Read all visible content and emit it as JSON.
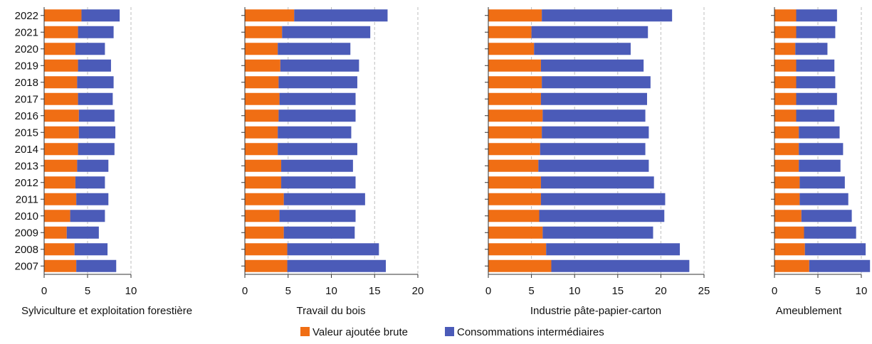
{
  "years": [
    "2022",
    "2021",
    "2020",
    "2019",
    "2018",
    "2017",
    "2016",
    "2015",
    "2014",
    "2013",
    "2012",
    "2011",
    "2010",
    "2009",
    "2008",
    "2007"
  ],
  "colors": {
    "vab": "#f06e14",
    "ci": "#4b5bb8",
    "grid": "#bdbdbd",
    "axis": "#333333"
  },
  "legend": {
    "vab_label": "Valeur ajoutée brute",
    "ci_label": "Consommations intermédiaires"
  },
  "chart_data": [
    {
      "type": "bar",
      "orientation": "horizontal",
      "stacked": true,
      "title": "Sylviculture et exploitation forestière",
      "xlim": [
        0,
        10
      ],
      "ticks": [
        0,
        5,
        10
      ],
      "tick_labels": [
        "0",
        "5",
        "10"
      ],
      "series": [
        {
          "name": "Valeur ajoutée brute",
          "values": [
            4.3,
            3.9,
            3.6,
            3.9,
            3.8,
            3.9,
            4.0,
            4.0,
            3.9,
            3.8,
            3.6,
            3.7,
            3.0,
            2.6,
            3.5,
            3.7
          ]
        },
        {
          "name": "Consommations intermédiaires",
          "values": [
            4.4,
            4.1,
            3.4,
            3.8,
            4.2,
            4.0,
            4.1,
            4.2,
            4.2,
            3.6,
            3.4,
            3.7,
            4.0,
            3.7,
            3.8,
            4.6
          ]
        }
      ]
    },
    {
      "type": "bar",
      "orientation": "horizontal",
      "stacked": true,
      "title": "Travail du bois",
      "xlim": [
        0,
        20
      ],
      "ticks": [
        0,
        5,
        10,
        15,
        20
      ],
      "tick_labels": [
        "0",
        "5",
        "10",
        "15",
        "20"
      ],
      "series": [
        {
          "name": "Valeur ajoutée brute",
          "values": [
            5.7,
            4.3,
            3.8,
            4.1,
            3.9,
            4.0,
            3.9,
            3.8,
            3.8,
            4.2,
            4.2,
            4.5,
            4.0,
            4.5,
            4.9,
            4.9
          ]
        },
        {
          "name": "Consommations intermédiaires",
          "values": [
            10.8,
            10.2,
            8.4,
            9.1,
            9.1,
            8.8,
            8.9,
            8.5,
            9.2,
            8.3,
            8.6,
            9.4,
            8.8,
            8.2,
            10.6,
            11.4
          ]
        }
      ]
    },
    {
      "type": "bar",
      "orientation": "horizontal",
      "stacked": true,
      "title": "Industrie pâte-papier-carton",
      "xlim": [
        0,
        25
      ],
      "ticks": [
        0,
        5,
        10,
        15,
        20,
        25
      ],
      "tick_labels": [
        "0",
        "5",
        "10",
        "15",
        "20",
        "25"
      ],
      "series": [
        {
          "name": "Valeur ajoutée brute",
          "values": [
            6.2,
            5.0,
            5.3,
            6.1,
            6.2,
            6.1,
            6.3,
            6.2,
            6.0,
            5.8,
            6.1,
            6.1,
            5.9,
            6.3,
            6.7,
            7.3
          ]
        },
        {
          "name": "Consommations intermédiaires",
          "values": [
            15.1,
            13.5,
            11.2,
            11.9,
            12.6,
            12.3,
            11.9,
            12.4,
            12.2,
            12.8,
            13.1,
            14.4,
            14.5,
            12.8,
            15.5,
            16.0
          ]
        }
      ]
    },
    {
      "type": "bar",
      "orientation": "horizontal",
      "stacked": true,
      "title": "Ameublement",
      "xlim": [
        0,
        11
      ],
      "ticks": [
        0,
        5,
        10
      ],
      "tick_labels": [
        "0",
        "5",
        "10"
      ],
      "series": [
        {
          "name": "Valeur ajoutée brute",
          "values": [
            2.5,
            2.5,
            2.4,
            2.5,
            2.5,
            2.5,
            2.5,
            2.8,
            2.8,
            2.8,
            2.9,
            2.9,
            3.1,
            3.4,
            3.5,
            4.0
          ]
        },
        {
          "name": "Consommations intermédiaires",
          "values": [
            4.7,
            4.5,
            3.7,
            4.4,
            4.5,
            4.7,
            4.4,
            4.7,
            5.1,
            4.8,
            5.2,
            5.6,
            5.8,
            6.0,
            7.0,
            7.0
          ]
        }
      ]
    }
  ]
}
